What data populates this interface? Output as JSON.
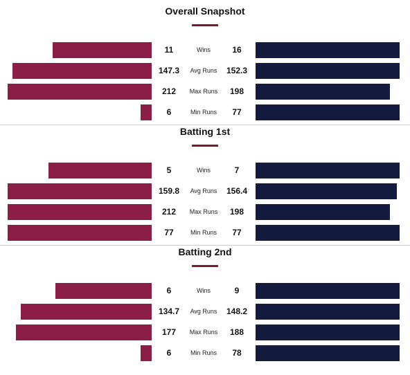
{
  "colors": {
    "team_left": "#8a1e46",
    "team_right": "#141b3f",
    "accent": "#7a1a2c"
  },
  "chart_data": [
    {
      "type": "bar",
      "title": "Overall Snapshot",
      "categories": [
        "Wins",
        "Avg Runs",
        "Max Runs",
        "Min Runs"
      ],
      "left": [
        11,
        147.3,
        212,
        6
      ],
      "right": [
        16,
        152.3,
        198,
        77
      ],
      "left_labels": [
        "11",
        "147.3",
        "212",
        "6"
      ],
      "right_labels": [
        "16",
        "152.3",
        "198",
        "77"
      ]
    },
    {
      "type": "bar",
      "title": "Batting 1st",
      "categories": [
        "Wins",
        "Avg Runs",
        "Max Runs",
        "Min Runs"
      ],
      "left": [
        5,
        159.8,
        212,
        77
      ],
      "right": [
        7,
        156.4,
        198,
        77
      ],
      "left_labels": [
        "5",
        "159.8",
        "212",
        "77"
      ],
      "right_labels": [
        "7",
        "156.4",
        "198",
        "77"
      ]
    },
    {
      "type": "bar",
      "title": "Batting 2nd",
      "categories": [
        "Wins",
        "Avg Runs",
        "Max Runs",
        "Min Runs"
      ],
      "left": [
        6,
        134.7,
        177,
        6
      ],
      "right": [
        9,
        148.2,
        188,
        78
      ],
      "left_labels": [
        "6",
        "134.7",
        "177",
        "6"
      ],
      "right_labels": [
        "9",
        "148.2",
        "188",
        "78"
      ]
    }
  ]
}
